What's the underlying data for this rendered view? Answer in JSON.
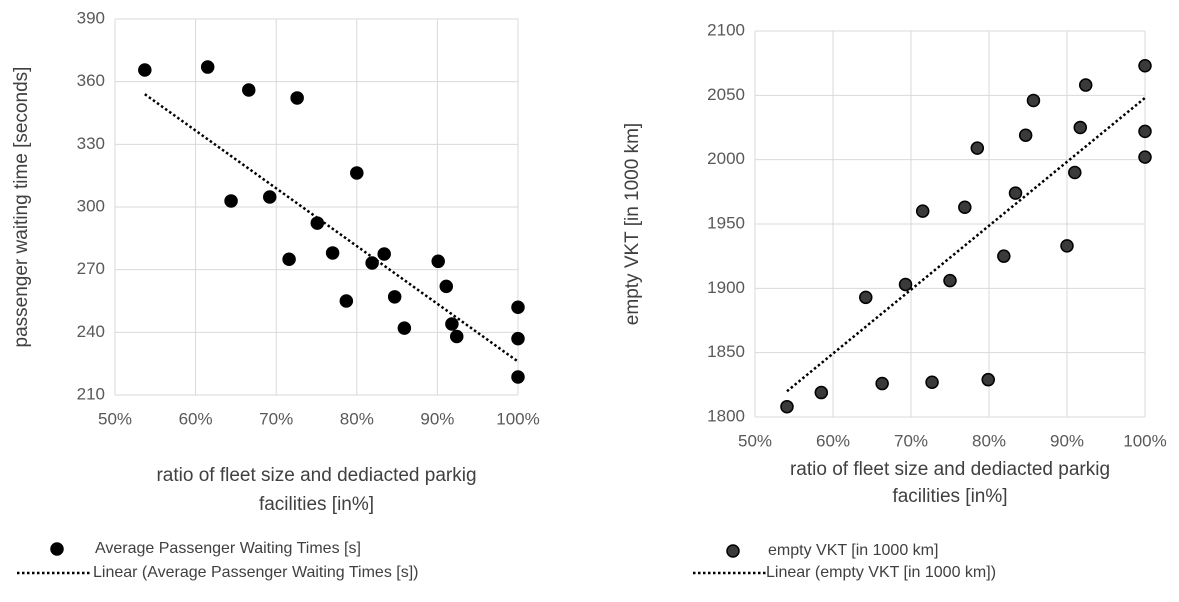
{
  "chart_data": [
    {
      "type": "scatter",
      "ylabel": "passenger waiting time [seconds]",
      "xlabel": [
        "ratio of fleet size and dediacted parkig",
        "facilities [in%]"
      ],
      "xlim": [
        50,
        100
      ],
      "xticks": [
        {
          "value": 50,
          "label": "50%"
        },
        {
          "value": 60,
          "label": "60%"
        },
        {
          "value": 70,
          "label": "70%"
        },
        {
          "value": 80,
          "label": "80%"
        },
        {
          "value": 90,
          "label": "90%"
        },
        {
          "value": 100,
          "label": "100%"
        }
      ],
      "ylim": [
        210,
        390
      ],
      "yticks": [
        210,
        240,
        270,
        300,
        330,
        360,
        390
      ],
      "grid": true,
      "series": [
        {
          "name": "Average Passenger Waiting Times  [s]",
          "color": "#000000",
          "x": [
            53.7,
            61.5,
            66.6,
            72.6,
            64.4,
            69.2,
            80.0,
            75.1,
            71.6,
            77.0,
            78.7,
            81.9,
            83.4,
            84.7,
            85.9,
            90.1,
            91.1,
            91.8,
            92.4,
            100,
            100,
            100
          ],
          "values": [
            365.6,
            367,
            356,
            352.2,
            302.9,
            304.8,
            316.3,
            292.3,
            275,
            278,
            255,
            273.2,
            277.5,
            257,
            242,
            274,
            262,
            244,
            238,
            252,
            237,
            218.6
          ]
        },
        {
          "name": "Linear (Average Passenger Waiting Times  [s])",
          "color": "#000000",
          "line": "dotted",
          "x": [
            53.7,
            100
          ],
          "values": [
            354,
            226
          ]
        }
      ]
    },
    {
      "type": "scatter",
      "ylabel": "empty VKT [in 1000 km]",
      "xlabel": [
        "ratio of fleet size and dediacted parkig",
        "facilities [in%]"
      ],
      "xlim": [
        50,
        100
      ],
      "xticks": [
        {
          "value": 50,
          "label": "50%"
        },
        {
          "value": 60,
          "label": "60%"
        },
        {
          "value": 70,
          "label": "70%"
        },
        {
          "value": 80,
          "label": "80%"
        },
        {
          "value": 90,
          "label": "90%"
        },
        {
          "value": 100,
          "label": "100%"
        }
      ],
      "ylim": [
        1800,
        2100
      ],
      "yticks": [
        1800,
        1850,
        1900,
        1950,
        2000,
        2050,
        2100
      ],
      "grid": true,
      "series": [
        {
          "name": "empty VKT [in 1000 km]",
          "color": "#3a3a3a",
          "x": [
            54.1,
            58.5,
            64.2,
            66.3,
            69.3,
            71.5,
            72.7,
            75.0,
            76.9,
            78.5,
            79.9,
            81.9,
            83.4,
            84.7,
            85.7,
            90.0,
            91.0,
            91.7,
            92.4,
            100,
            100,
            100
          ],
          "values": [
            1808,
            1819,
            1893,
            1826,
            1903,
            1960,
            1827,
            1906,
            1963,
            2009,
            1829,
            1925,
            1974,
            2019,
            2046,
            1933,
            1990,
            2025,
            2058,
            2073,
            2022,
            2002
          ]
        },
        {
          "name": "Linear (empty VKT [in 1000 km])",
          "color": "#000000",
          "line": "dotted",
          "x": [
            54.1,
            100
          ],
          "values": [
            1820,
            2048
          ]
        }
      ]
    }
  ]
}
